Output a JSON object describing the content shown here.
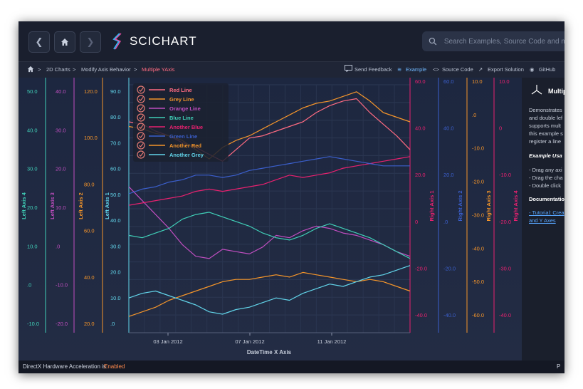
{
  "header": {
    "brand_name": "SCICHART",
    "search_placeholder": "Search Examples, Source Code and more...",
    "back_icon": "chevron-left-icon",
    "home_icon": "home-icon",
    "forward_icon": "chevron-right-icon"
  },
  "breadcrumb": {
    "items": [
      "2D Charts",
      "Modify Axis Behavior",
      "Multiple YAxis"
    ],
    "active_color": "#ff6b81"
  },
  "toolbar": {
    "feedback": "Send Feedback",
    "example": "Example",
    "source": "Source Code",
    "export": "Export Solution",
    "github": "GitHub"
  },
  "side_panel": {
    "title": "Multip",
    "desc_lines": [
      "Demonstrates",
      "and double lef",
      "supports mult",
      "this example s",
      "register a line"
    ],
    "usage_title": "Example Usa",
    "usage_items": [
      "- Drag any axi",
      "- Drag the cha",
      "- Double click"
    ],
    "docs_title": "Documentatio",
    "docs_links": [
      "- Tutorial: Crea",
      "and Y Axes"
    ]
  },
  "status": {
    "prefix": "DirectX Hardware Acceleration is ",
    "state": "Enabled",
    "state_color": "#ff8a4c",
    "right": "P"
  },
  "chart_data": {
    "type": "line",
    "xlabel": "DateTime X Axis",
    "x_ticks": [
      "03 Jan 2012",
      "07 Jan 2012",
      "11 Jan 2012"
    ],
    "legend_position": "top-left",
    "left_axes": [
      {
        "title": "Left Axis 4",
        "color": "#40d0b8",
        "ticks": [
          "50.0",
          "40.0",
          "30.0",
          "20.0",
          "10.0",
          ".0",
          "-10.0"
        ]
      },
      {
        "title": "Left Axis 3",
        "color": "#c04ec0",
        "ticks": [
          "40.0",
          "30.0",
          "20.0",
          "10.0",
          ".0",
          "-10.0",
          "-20.0"
        ]
      },
      {
        "title": "Left Axis 2",
        "color": "#f5952a",
        "ticks": [
          "120.0",
          "100.0",
          "80.0",
          "60.0",
          "40.0",
          "20.0"
        ]
      },
      {
        "title": "Left Axis 1",
        "color": "#62d5ea",
        "ticks": [
          "90.0",
          "80.0",
          "70.0",
          "60.0",
          "50.0",
          "40.0",
          "30.0",
          "20.0",
          "10.0",
          ".0"
        ]
      }
    ],
    "right_axes": [
      {
        "title": "Right Axis 1",
        "color": "#e8216f",
        "ticks": [
          "60.0",
          "40.0",
          "20.0",
          "0",
          "-20.0",
          "-40.0"
        ]
      },
      {
        "title": "Right Axis 2",
        "color": "#3b5fcc",
        "ticks": [
          "60.0",
          "40.0",
          "20.0",
          ".0",
          "-20.0",
          "-40.0"
        ]
      },
      {
        "title": "Right Axis 3",
        "color": "#f5952a",
        "ticks": [
          "10.0",
          ".0",
          "-10.0",
          "-20.0",
          "-30.0",
          "-40.0",
          "-50.0",
          "-60.0"
        ]
      },
      {
        "title": "Right Axis 4",
        "color": "#e8216f",
        "ticks": [
          "10.0",
          "0",
          "-10.0",
          "-20.0",
          "-30.0",
          "-40.0"
        ]
      }
    ],
    "series": [
      {
        "name": "Red Line",
        "color": "#ff6b81",
        "y": [
          86,
          85,
          82,
          80,
          77,
          75,
          72,
          69,
          74,
          79,
          80,
          82,
          84,
          86,
          90,
          93,
          95,
          96,
          90,
          85,
          80,
          74
        ]
      },
      {
        "name": "Grey Line",
        "color": "#f5952a",
        "y": [
          84,
          83,
          81,
          80,
          78,
          74,
          70,
          75,
          78,
          80,
          83,
          86,
          89,
          92,
          94,
          95,
          97,
          99,
          95,
          90,
          88,
          86
        ]
      },
      {
        "name": "Orange Line",
        "color": "#c04ec0",
        "y": [
          58,
          52,
          46,
          40,
          33,
          28,
          27,
          31,
          30,
          29,
          32,
          37,
          36,
          39,
          41,
          40,
          38,
          37,
          35,
          33,
          30,
          28
        ]
      },
      {
        "name": "Blue Line",
        "color": "#40d0b8",
        "y": [
          37,
          36,
          38,
          40,
          44,
          46,
          47,
          45,
          43,
          41,
          38,
          36,
          35,
          37,
          40,
          42,
          40,
          38,
          36,
          33,
          30,
          27
        ]
      },
      {
        "name": "Another Blue",
        "color": "#e8216f",
        "y": [
          50,
          51,
          52,
          53,
          54,
          56,
          57,
          56,
          57,
          58,
          59,
          61,
          63,
          62,
          63,
          64,
          66,
          67,
          68,
          69,
          70,
          71
        ]
      },
      {
        "name": "Green Line",
        "color": "#3b5fcc",
        "y": [
          55,
          57,
          58,
          60,
          61,
          63,
          63,
          62,
          63,
          65,
          66,
          67,
          68,
          69,
          70,
          71,
          70,
          69,
          68,
          67,
          67,
          67
        ]
      },
      {
        "name": "Another Red",
        "color": "#f5952a",
        "y": [
          2,
          4,
          6,
          9,
          11,
          13,
          15,
          17,
          18,
          18,
          19,
          20,
          19,
          21,
          20,
          19,
          18,
          17,
          18,
          17,
          15,
          13
        ]
      },
      {
        "name": "Another Grey",
        "color": "#62d5ea",
        "y": [
          10,
          12,
          13,
          11,
          9,
          7,
          4,
          3,
          5,
          6,
          8,
          10,
          9,
          12,
          14,
          16,
          15,
          17,
          19,
          20,
          22,
          24
        ]
      }
    ]
  }
}
